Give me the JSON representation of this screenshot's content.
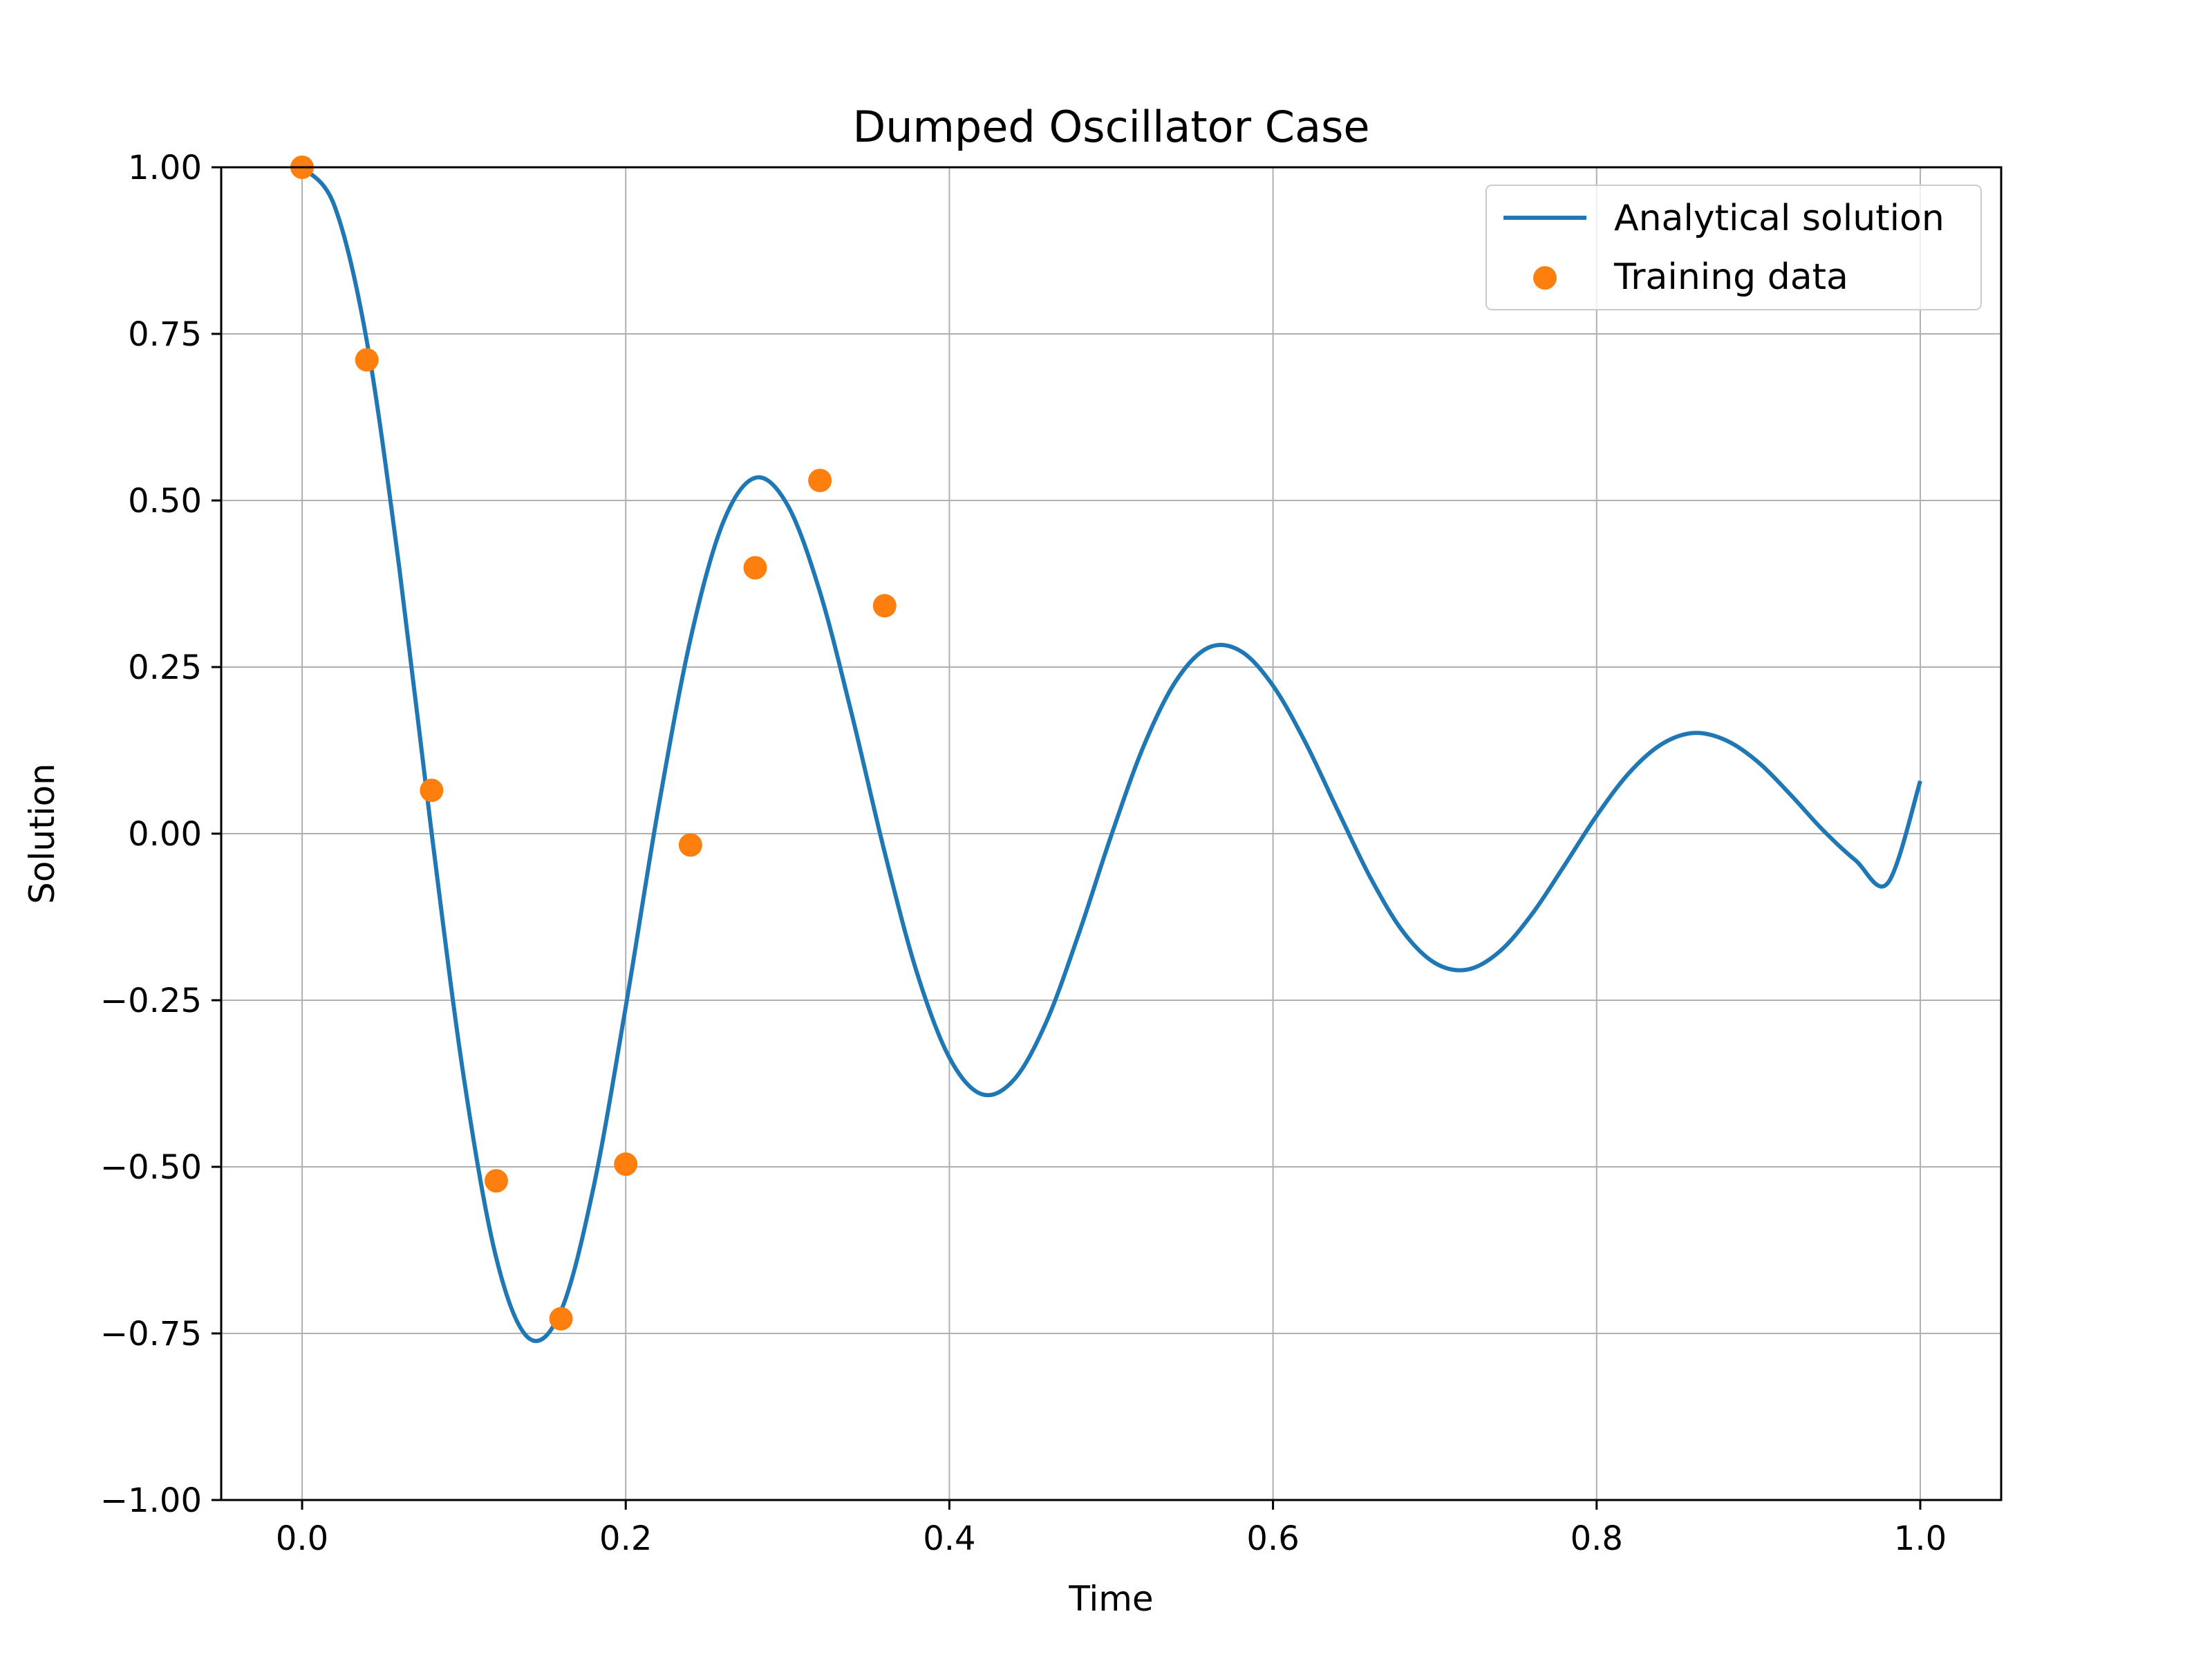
{
  "chart_data": {
    "type": "line",
    "title": "Dumped Oscillator Case",
    "xlabel": "Time",
    "ylabel": "Solution",
    "xlim": [
      -0.05,
      1.05
    ],
    "ylim": [
      -1.0,
      1.0
    ],
    "x_ticks": [
      0.0,
      0.2,
      0.4,
      0.6,
      0.8,
      1.0
    ],
    "x_tick_labels": [
      "0.0",
      "0.2",
      "0.4",
      "0.6",
      "0.8",
      "1.0"
    ],
    "y_ticks": [
      1.0,
      0.75,
      0.5,
      0.25,
      0.0,
      -0.25,
      -0.5,
      -0.75,
      -1.0
    ],
    "y_tick_labels": [
      "1.00",
      "0.75",
      "0.50",
      "0.25",
      "0.00",
      "−0.25",
      "−0.50",
      "−0.75",
      "−1.00"
    ],
    "grid": true,
    "legend_position": "top-right",
    "series": [
      {
        "name": "Analytical solution",
        "type": "line",
        "color": "#1f77b4",
        "x": [
          0.0,
          0.02,
          0.04,
          0.06,
          0.08,
          0.1,
          0.12,
          0.14,
          0.16,
          0.18,
          0.2,
          0.22,
          0.24,
          0.26,
          0.28,
          0.3,
          0.32,
          0.34,
          0.36,
          0.38,
          0.4,
          0.42,
          0.44,
          0.46,
          0.48,
          0.5,
          0.52,
          0.54,
          0.56,
          0.58,
          0.6,
          0.62,
          0.64,
          0.66,
          0.68,
          0.7,
          0.72,
          0.74,
          0.76,
          0.78,
          0.8,
          0.82,
          0.84,
          0.86,
          0.88,
          0.9,
          0.92,
          0.94,
          0.96,
          0.98,
          1.0
        ],
        "y": [
          1.0,
          0.942,
          0.739,
          0.4,
          0.002,
          -0.367,
          -0.637,
          -0.757,
          -0.716,
          -0.532,
          -0.26,
          0.036,
          0.292,
          0.466,
          0.534,
          0.493,
          0.363,
          0.176,
          -0.028,
          -0.209,
          -0.336,
          -0.391,
          -0.369,
          -0.282,
          -0.15,
          -0.003,
          0.131,
          0.229,
          0.279,
          0.274,
          0.222,
          0.137,
          0.035,
          -0.065,
          -0.146,
          -0.194,
          -0.204,
          -0.177,
          -0.121,
          -0.048,
          0.027,
          0.091,
          0.134,
          0.151,
          0.14,
          0.107,
          0.058,
          0.005,
          -0.04,
          -0.074,
          0.079
        ]
      },
      {
        "name": "Training data",
        "type": "scatter",
        "color": "#ff7f0e",
        "x": [
          0.0,
          0.04,
          0.08,
          0.12,
          0.16,
          0.2,
          0.24,
          0.28,
          0.32,
          0.36
        ],
        "y": [
          1.0,
          0.711,
          0.065,
          -0.521,
          -0.728,
          -0.496,
          -0.017,
          0.399,
          0.53,
          0.342
        ]
      }
    ]
  }
}
